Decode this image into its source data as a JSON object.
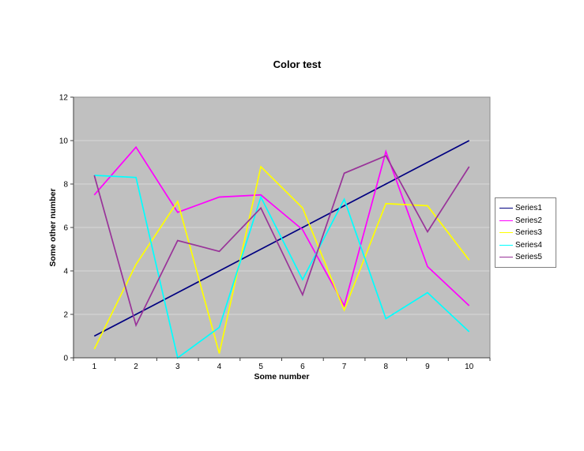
{
  "chart_data": {
    "type": "line",
    "title": "Color test",
    "xlabel": "Some number",
    "ylabel": "Some other number",
    "x": [
      1,
      2,
      3,
      4,
      5,
      6,
      7,
      8,
      9,
      10
    ],
    "x_tick_labels": [
      "1",
      "2",
      "3",
      "4",
      "5",
      "6",
      "7",
      "8",
      "9",
      "10"
    ],
    "y_ticks": [
      0,
      2,
      4,
      6,
      8,
      10,
      12
    ],
    "ylim": [
      0,
      12
    ],
    "grid": "horizontal",
    "legend_position": "right",
    "plot_bg": "#c0c0c0",
    "gridline_color": "#d9d9d9",
    "axis_color": "#404040",
    "series": [
      {
        "name": "Series1",
        "color": "#000080",
        "values": [
          1,
          2,
          3,
          4,
          5,
          6,
          7,
          8,
          9,
          10
        ]
      },
      {
        "name": "Series2",
        "color": "#ff00ff",
        "values": [
          7.5,
          9.7,
          6.7,
          7.4,
          7.5,
          5.9,
          2.4,
          9.5,
          4.2,
          2.4
        ]
      },
      {
        "name": "Series3",
        "color": "#ffff00",
        "values": [
          0.4,
          4.3,
          7.2,
          0.2,
          8.8,
          6.9,
          2.2,
          7.1,
          7.0,
          4.5
        ]
      },
      {
        "name": "Series4",
        "color": "#00ffff",
        "values": [
          8.4,
          8.3,
          0.0,
          1.4,
          7.4,
          3.6,
          7.3,
          1.8,
          3.0,
          1.2
        ]
      },
      {
        "name": "Series5",
        "color": "#993399",
        "values": [
          8.4,
          1.5,
          5.4,
          4.9,
          6.9,
          2.9,
          8.5,
          9.3,
          5.8,
          8.8
        ]
      }
    ]
  }
}
